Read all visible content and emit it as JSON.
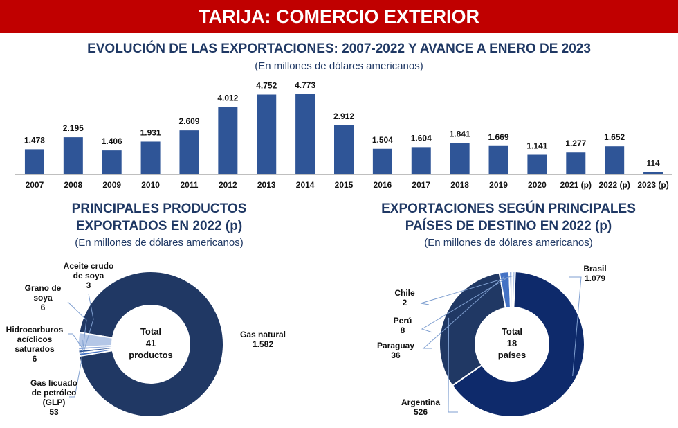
{
  "header": {
    "title": "TARIJA: COMERCIO EXTERIOR"
  },
  "chart_data": [
    {
      "type": "bar",
      "title": "EVOLUCIÓN DE LAS EXPORTACIONES: 2007-2022 Y AVANCE A ENERO DE 2023",
      "subtitle": "(En millones de dólares americanos)",
      "categories": [
        "2007",
        "2008",
        "2009",
        "2010",
        "2011",
        "2012",
        "2013",
        "2014",
        "2015",
        "2016",
        "2017",
        "2018",
        "2019",
        "2020",
        "2021 (p)",
        "2022 (p)",
        "2023 (p)"
      ],
      "values": [
        1478,
        2195,
        1406,
        1931,
        2609,
        4012,
        4752,
        4773,
        2912,
        1504,
        1604,
        1841,
        1669,
        1141,
        1277,
        1652,
        114
      ],
      "value_labels": [
        "1.478",
        "2.195",
        "1.406",
        "1.931",
        "2.609",
        "4.012",
        "4.752",
        "4.773",
        "2.912",
        "1.504",
        "1.604",
        "1.841",
        "1.669",
        "1.141",
        "1.277",
        "1.652",
        "114"
      ],
      "color": "#2f5597",
      "ylim": [
        0,
        4773
      ]
    },
    {
      "type": "pie",
      "title": "PRINCIPALES PRODUCTOS EXPORTADOS EN 2022 (p)",
      "title_lines": [
        "PRINCIPALES PRODUCTOS",
        "EXPORTADOS EN 2022 (p)"
      ],
      "subtitle": "(En millones de dólares americanos)",
      "center_lines": [
        "Total",
        "41",
        "productos"
      ],
      "slices": [
        {
          "name": "Gas natural",
          "value": 1582,
          "value_label": "1.582",
          "color": "#203864",
          "label_lines": [
            "Gas natural",
            "1.582"
          ]
        },
        {
          "name": "Gas licuado de petróleo (GLP)",
          "value": 53,
          "value_label": "53",
          "color": "#b4c7e7",
          "label_lines": [
            "Gas licuado",
            "de petróleo",
            "(GLP)",
            "53"
          ]
        },
        {
          "name": "Hidrocarburos acíclicos saturados",
          "value": 6,
          "value_label": "6",
          "color": "#8faadc",
          "label_lines": [
            "Hidrocarburos",
            "acíclicos",
            "saturados",
            "6"
          ]
        },
        {
          "name": "Grano de soya",
          "value": 6,
          "value_label": "6",
          "color": "#2f5597",
          "label_lines": [
            "Grano de",
            "soya",
            "6"
          ]
        },
        {
          "name": "Aceite crudo de soya",
          "value": 3,
          "value_label": "3",
          "color": "#4472c4",
          "label_lines": [
            "Aceite crudo",
            "de soya",
            "3"
          ]
        }
      ]
    },
    {
      "type": "pie",
      "title": "EXPORTACIONES SEGÚN PRINCIPALES PAÍSES DE DESTINO EN 2022 (p)",
      "title_lines": [
        "EXPORTACIONES SEGÚN PRINCIPALES",
        "PAÍSES DE DESTINO EN 2022 (p)"
      ],
      "subtitle": "(En millones de dólares americanos)",
      "center_lines": [
        "Total",
        "18",
        "países"
      ],
      "slices": [
        {
          "name": "Brasil",
          "value": 1079,
          "value_label": "1.079",
          "color": "#0e2a6b",
          "label_lines": [
            "Brasil",
            "1.079"
          ]
        },
        {
          "name": "Argentina",
          "value": 526,
          "value_label": "526",
          "color": "#203864",
          "label_lines": [
            "Argentina",
            "526"
          ]
        },
        {
          "name": "Paraguay",
          "value": 36,
          "value_label": "36",
          "color": "#4472c4",
          "label_lines": [
            "Paraguay",
            "36"
          ]
        },
        {
          "name": "Perú",
          "value": 8,
          "value_label": "8",
          "color": "#8faadc",
          "label_lines": [
            "Perú",
            "8"
          ]
        },
        {
          "name": "Chile",
          "value": 2,
          "value_label": "2",
          "color": "#b4c7e7",
          "label_lines": [
            "Chile",
            "2"
          ]
        }
      ]
    }
  ]
}
